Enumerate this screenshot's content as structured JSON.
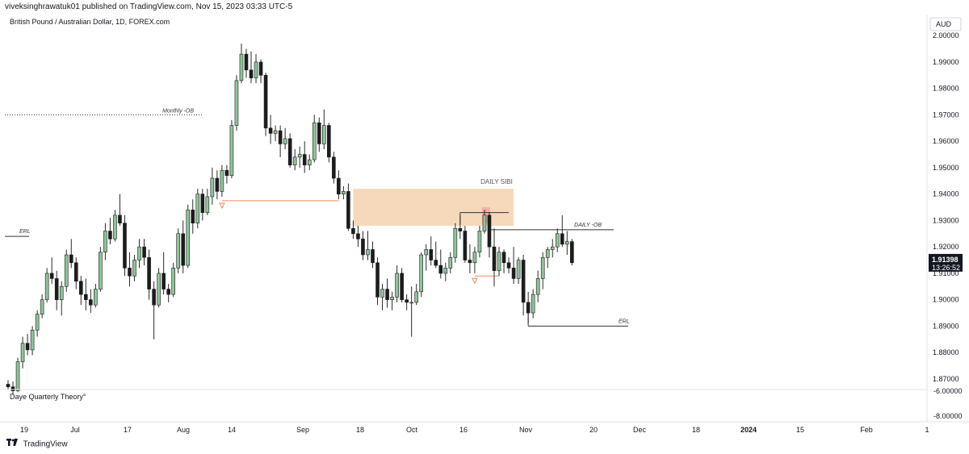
{
  "header": {
    "publisher_line": "viveksinghrawatuk01 published on TradingView.com, Nov 15, 2023 03:33 UTC-5"
  },
  "footer": {
    "brand": "TradingView"
  },
  "chart_data": {
    "type": "candlestick",
    "title": "British Pound / Australian Dollar, 1D, FOREX.com",
    "currency_button": "AUD",
    "last_price": "1.91398",
    "countdown": "13:26:52",
    "ylim": [
      1.866,
      2.008
    ],
    "y_ticks": [
      "2.00000",
      "1.99000",
      "1.98000",
      "1.97000",
      "1.96000",
      "1.95000",
      "1.94000",
      "1.93000",
      "1.92000",
      "1.91000",
      "1.90000",
      "1.89000",
      "1.88000",
      "1.87000"
    ],
    "x_ticks": [
      "19",
      "Jul",
      "17",
      "Aug",
      "14",
      "Sep",
      "18",
      "Oct",
      "16",
      "Nov",
      "20",
      "Dec",
      "18",
      "2024",
      "15",
      "Feb",
      "1"
    ],
    "x_ticks_bold": [
      "2024"
    ],
    "colors": {
      "up": "#8fc49a",
      "down": "#1c1c1c",
      "wick": "#2a2a2a",
      "zone": "#f5d5b3",
      "zone_line": "#f28b50",
      "marker": "#f4a3a3"
    },
    "annotations": {
      "monthly_ob": {
        "label": "Monthly -OB",
        "price": 1.97
      },
      "erl_left": {
        "label": "ERL",
        "price": 1.924
      },
      "daily_sibi": {
        "label": "DAILY SIBI",
        "low": 1.928,
        "high": 1.942
      },
      "daily_ob": {
        "label": "DAILY -OB",
        "price": 1.9265
      },
      "erl_right": {
        "label": "ERL",
        "price": 1.89
      },
      "pivot_high": {
        "price": 1.933
      },
      "sup_line_1": {
        "price": 1.9375
      },
      "sup_line_2": {
        "price": 1.909
      }
    },
    "indicator": {
      "label": "Daye Quarterly Theory°",
      "ticks": [
        "-6.00000",
        "-8.00000"
      ]
    },
    "candles": [
      [
        1.868,
        1.8695,
        1.866,
        1.867
      ],
      [
        1.867,
        1.869,
        1.864,
        1.8655
      ],
      [
        1.8655,
        1.878,
        1.865,
        1.8765
      ],
      [
        1.8765,
        1.886,
        1.874,
        1.8835
      ],
      [
        1.8835,
        1.887,
        1.879,
        1.881
      ],
      [
        1.881,
        1.89,
        1.879,
        1.8885
      ],
      [
        1.8885,
        1.896,
        1.886,
        1.8945
      ],
      [
        1.8945,
        1.902,
        1.893,
        1.9
      ],
      [
        1.9,
        1.912,
        1.899,
        1.91
      ],
      [
        1.91,
        1.916,
        1.906,
        1.908
      ],
      [
        1.908,
        1.911,
        1.896,
        1.9
      ],
      [
        1.9,
        1.907,
        1.894,
        1.905
      ],
      [
        1.905,
        1.919,
        1.903,
        1.917
      ],
      [
        1.917,
        1.923,
        1.912,
        1.914
      ],
      [
        1.914,
        1.916,
        1.904,
        1.907
      ],
      [
        1.907,
        1.909,
        1.898,
        1.902
      ],
      [
        1.902,
        1.908,
        1.896,
        1.9
      ],
      [
        1.9,
        1.904,
        1.895,
        1.898
      ],
      [
        1.898,
        1.906,
        1.897,
        1.904
      ],
      [
        1.904,
        1.92,
        1.903,
        1.918
      ],
      [
        1.918,
        1.929,
        1.915,
        1.926
      ],
      [
        1.926,
        1.931,
        1.921,
        1.923
      ],
      [
        1.923,
        1.934,
        1.922,
        1.932
      ],
      [
        1.932,
        1.94,
        1.928,
        1.929
      ],
      [
        1.929,
        1.932,
        1.909,
        1.912
      ],
      [
        1.912,
        1.918,
        1.905,
        1.909
      ],
      [
        1.909,
        1.917,
        1.907,
        1.915
      ],
      [
        1.915,
        1.923,
        1.912,
        1.92
      ],
      [
        1.92,
        1.923,
        1.913,
        1.916
      ],
      [
        1.916,
        1.919,
        1.9,
        1.904
      ],
      [
        1.904,
        1.907,
        1.885,
        1.898
      ],
      [
        1.898,
        1.912,
        1.897,
        1.91
      ],
      [
        1.91,
        1.918,
        1.902,
        1.904
      ],
      [
        1.904,
        1.906,
        1.899,
        1.902
      ],
      [
        1.902,
        1.914,
        1.901,
        1.912
      ],
      [
        1.912,
        1.927,
        1.91,
        1.925
      ],
      [
        1.925,
        1.93,
        1.91,
        1.913
      ],
      [
        1.913,
        1.936,
        1.912,
        1.934
      ],
      [
        1.934,
        1.938,
        1.925,
        1.929
      ],
      [
        1.929,
        1.942,
        1.927,
        1.94
      ],
      [
        1.94,
        1.942,
        1.93,
        1.933
      ],
      [
        1.933,
        1.942,
        1.932,
        1.939
      ],
      [
        1.939,
        1.95,
        1.936,
        1.946
      ],
      [
        1.946,
        1.949,
        1.938,
        1.941
      ],
      [
        1.941,
        1.951,
        1.939,
        1.949
      ],
      [
        1.949,
        1.951,
        1.944,
        1.947
      ],
      [
        1.947,
        1.968,
        1.946,
        1.966
      ],
      [
        1.966,
        1.985,
        1.964,
        1.983
      ],
      [
        1.983,
        1.997,
        1.982,
        1.993
      ],
      [
        1.993,
        1.995,
        1.984,
        1.987
      ],
      [
        1.987,
        1.994,
        1.982,
        1.984
      ],
      [
        1.984,
        1.993,
        1.982,
        1.99
      ],
      [
        1.99,
        1.991,
        1.982,
        1.985
      ],
      [
        1.985,
        1.986,
        1.962,
        1.965
      ],
      [
        1.965,
        1.97,
        1.959,
        1.963
      ],
      [
        1.963,
        1.966,
        1.96,
        1.964
      ],
      [
        1.964,
        1.966,
        1.954,
        1.959
      ],
      [
        1.959,
        1.965,
        1.957,
        1.961
      ],
      [
        1.961,
        1.963,
        1.95,
        1.951
      ],
      [
        1.951,
        1.957,
        1.949,
        1.954
      ],
      [
        1.954,
        1.958,
        1.95,
        1.955
      ],
      [
        1.955,
        1.96,
        1.948,
        1.951
      ],
      [
        1.951,
        1.955,
        1.949,
        1.953
      ],
      [
        1.953,
        1.97,
        1.952,
        1.967
      ],
      [
        1.967,
        1.969,
        1.956,
        1.959
      ],
      [
        1.959,
        1.972,
        1.957,
        1.966
      ],
      [
        1.966,
        1.967,
        1.952,
        1.954
      ],
      [
        1.954,
        1.956,
        1.944,
        1.946
      ],
      [
        1.946,
        1.949,
        1.938,
        1.94
      ],
      [
        1.94,
        1.943,
        1.938,
        1.941
      ],
      [
        1.941,
        1.944,
        1.926,
        1.927
      ],
      [
        1.927,
        1.93,
        1.923,
        1.925
      ],
      [
        1.925,
        1.928,
        1.92,
        1.923
      ],
      [
        1.923,
        1.926,
        1.915,
        1.917
      ],
      [
        1.917,
        1.926,
        1.915,
        1.919
      ],
      [
        1.919,
        1.922,
        1.912,
        1.914
      ],
      [
        1.914,
        1.916,
        1.898,
        1.901
      ],
      [
        1.901,
        1.906,
        1.896,
        1.904
      ],
      [
        1.904,
        1.908,
        1.897,
        1.9
      ],
      [
        1.9,
        1.903,
        1.896,
        1.901
      ],
      [
        1.901,
        1.913,
        1.899,
        1.91
      ],
      [
        1.91,
        1.912,
        1.899,
        1.9
      ],
      [
        1.9,
        1.902,
        1.896,
        1.899
      ],
      [
        1.899,
        1.905,
        1.886,
        1.899
      ],
      [
        1.899,
        1.906,
        1.898,
        1.903
      ],
      [
        1.903,
        1.918,
        1.901,
        1.917
      ],
      [
        1.917,
        1.921,
        1.911,
        1.919
      ],
      [
        1.919,
        1.924,
        1.913,
        1.915
      ],
      [
        1.915,
        1.922,
        1.912,
        1.913
      ],
      [
        1.913,
        1.919,
        1.908,
        1.91
      ],
      [
        1.91,
        1.914,
        1.907,
        1.912
      ],
      [
        1.912,
        1.918,
        1.91,
        1.916
      ],
      [
        1.916,
        1.929,
        1.914,
        1.927
      ],
      [
        1.927,
        1.932,
        1.923,
        1.926
      ],
      [
        1.926,
        1.928,
        1.914,
        1.915
      ],
      [
        1.915,
        1.921,
        1.91,
        1.914
      ],
      [
        1.914,
        1.92,
        1.91,
        1.918
      ],
      [
        1.918,
        1.928,
        1.916,
        1.926
      ],
      [
        1.926,
        1.934,
        1.925,
        1.932
      ],
      [
        1.932,
        1.933,
        1.916,
        1.92
      ],
      [
        1.92,
        1.927,
        1.905,
        1.911
      ],
      [
        1.911,
        1.92,
        1.909,
        1.918
      ],
      [
        1.918,
        1.919,
        1.91,
        1.914
      ],
      [
        1.914,
        1.916,
        1.91,
        1.912
      ],
      [
        1.912,
        1.92,
        1.906,
        1.908
      ],
      [
        1.908,
        1.916,
        1.906,
        1.915
      ],
      [
        1.915,
        1.917,
        1.894,
        1.899
      ],
      [
        1.899,
        1.903,
        1.891,
        1.895
      ],
      [
        1.895,
        1.904,
        1.893,
        1.902
      ],
      [
        1.902,
        1.911,
        1.899,
        1.908
      ],
      [
        1.908,
        1.918,
        1.904,
        1.916
      ],
      [
        1.916,
        1.92,
        1.912,
        1.919
      ],
      [
        1.919,
        1.923,
        1.916,
        1.92
      ],
      [
        1.92,
        1.927,
        1.918,
        1.925
      ],
      [
        1.925,
        1.932,
        1.92,
        1.921
      ],
      [
        1.921,
        1.926,
        1.917,
        1.922
      ],
      [
        1.922,
        1.923,
        1.913,
        1.914
      ]
    ]
  }
}
